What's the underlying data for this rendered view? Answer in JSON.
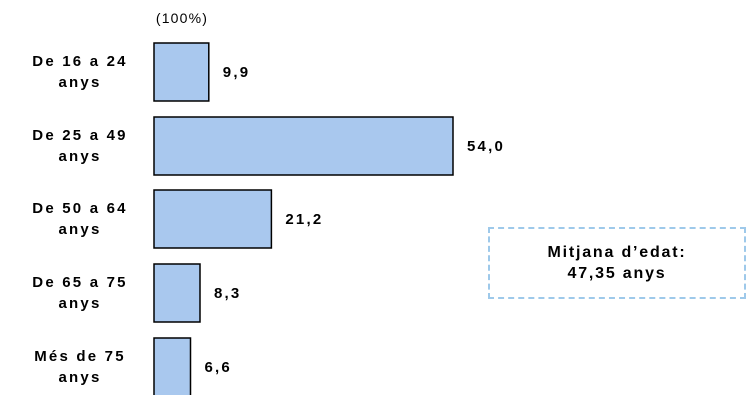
{
  "chart_data": {
    "type": "bar",
    "orientation": "horizontal",
    "unit_label": "(100%)",
    "categories": [
      [
        "De 16 a 24",
        "anys"
      ],
      [
        "De 25 a 49",
        "anys"
      ],
      [
        "De 50 a 64",
        "anys"
      ],
      [
        "De 65 a 75",
        "anys"
      ],
      [
        "Més de 75",
        "anys"
      ]
    ],
    "values": [
      9.9,
      54.0,
      21.2,
      8.3,
      6.6
    ],
    "value_labels": [
      "9,9",
      "54,0",
      "21,2",
      "8,3",
      "6,6"
    ],
    "xlim": [
      0,
      60
    ],
    "bar_color": "#a9c8ee",
    "bar_stroke": "#000000",
    "grid": false
  },
  "note": {
    "line1": "Mitjana d’edat:",
    "line2": "47,35 anys",
    "border_color": "#9ec9ea"
  }
}
